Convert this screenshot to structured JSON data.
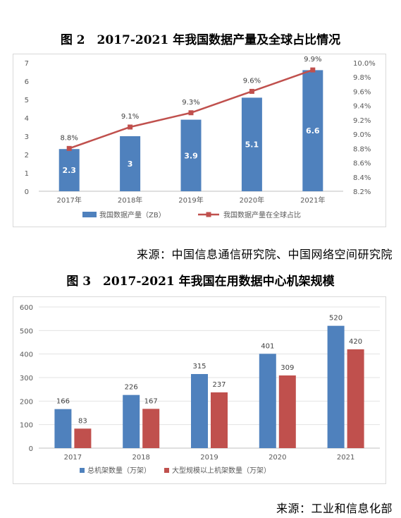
{
  "figure2": {
    "title": "图 2　2017-2021 年我国数据产量及全球占比情况",
    "source": "来源：中国信息通信研究院、中国网络空间研究院"
  },
  "figure3": {
    "title": "图 3　2017-2021 年我国在用数据中心机架规模",
    "source": "来源：工业和信息化部"
  },
  "chart_data": [
    {
      "type": "bar",
      "secondary_type": "line",
      "categories": [
        "2017年",
        "2018年",
        "2019年",
        "2020年",
        "2021年"
      ],
      "series": [
        {
          "name": "我国数据产量（ZB）",
          "type": "bar",
          "axis": "left",
          "values": [
            2.3,
            3,
            3.9,
            5.1,
            6.6
          ],
          "labels": [
            "2.3",
            "3",
            "3.9",
            "5.1",
            "6.6"
          ],
          "color": "#4f81bd"
        },
        {
          "name": "我国数据产量在全球占比",
          "type": "line",
          "axis": "right",
          "values": [
            8.8,
            9.1,
            9.3,
            9.6,
            9.9
          ],
          "labels": [
            "8.8%",
            "9.1%",
            "9.3%",
            "9.6%",
            "9.9%"
          ],
          "color": "#c0504d"
        }
      ],
      "ylim": [
        0,
        7
      ],
      "yticks": [
        0,
        1,
        2,
        3,
        4,
        5,
        6,
        7
      ],
      "y2lim": [
        8.2,
        10.0
      ],
      "y2ticks": [
        "8.2%",
        "8.4%",
        "8.6%",
        "8.8%",
        "9.0%",
        "9.2%",
        "9.4%",
        "9.6%",
        "9.8%",
        "10.0%"
      ],
      "grid": false,
      "legend": "bottom"
    },
    {
      "type": "bar",
      "categories": [
        "2017",
        "2018",
        "2019",
        "2020",
        "2021"
      ],
      "series": [
        {
          "name": "总机架数量（万架）",
          "values": [
            166,
            226,
            315,
            401,
            520
          ],
          "color": "#4f81bd"
        },
        {
          "name": "大型规模以上机架数量（万架）",
          "values": [
            83,
            167,
            237,
            309,
            420
          ],
          "color": "#c0504d"
        }
      ],
      "ylim": [
        0,
        600
      ],
      "yticks": [
        0,
        100,
        200,
        300,
        400,
        500,
        600
      ],
      "grid": true,
      "legend": "bottom"
    }
  ]
}
